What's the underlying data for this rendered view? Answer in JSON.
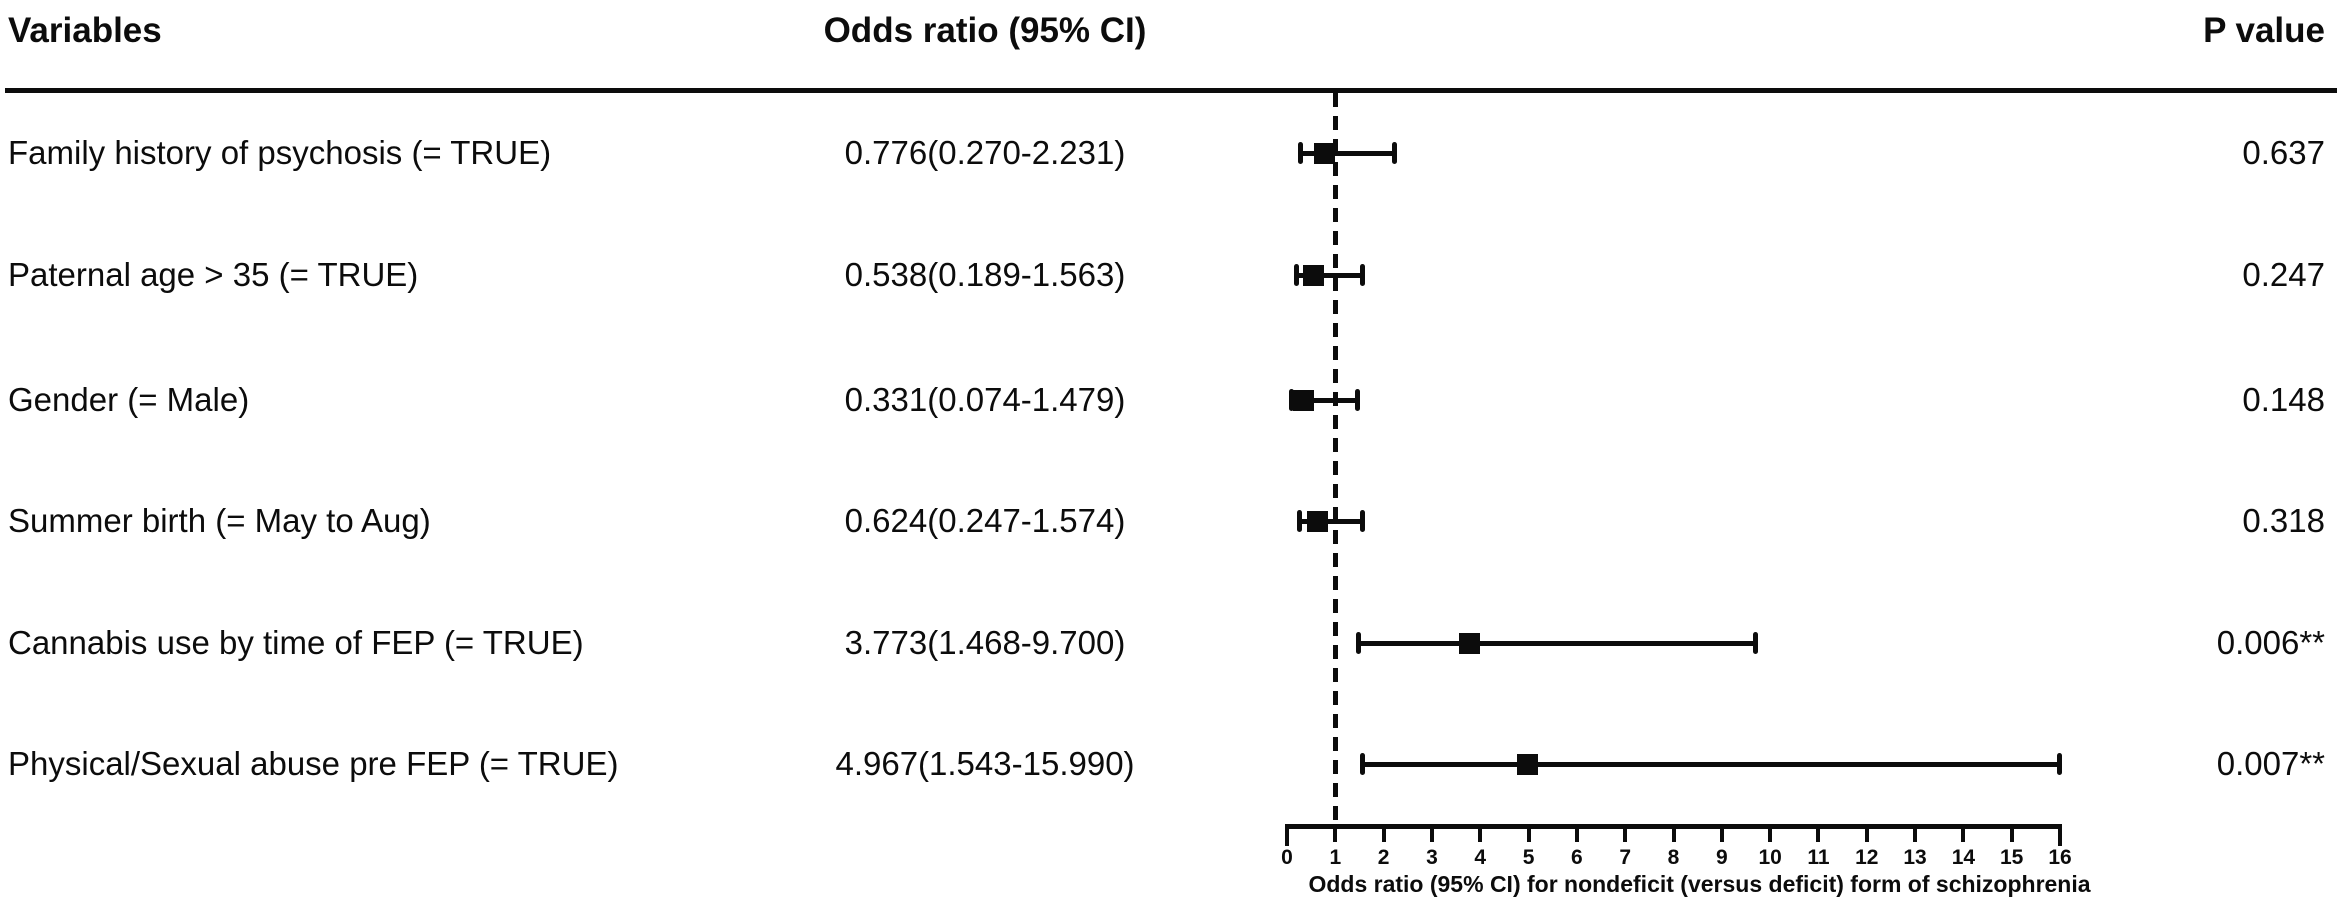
{
  "header": {
    "variables": "Variables",
    "odds_ratio": "Odds ratio (95% CI)",
    "p_value": "P value"
  },
  "chart_data": {
    "type": "forest",
    "x_axis": {
      "label": "Odds ratio (95% CI) for nondeficit (versus deficit) form of schizophrenia",
      "min": 0,
      "max": 16,
      "ticks": [
        0,
        1,
        2,
        3,
        4,
        5,
        6,
        7,
        8,
        9,
        10,
        11,
        12,
        13,
        14,
        15,
        16
      ],
      "reference_line": 1
    },
    "rows": [
      {
        "variable": "Family history of psychosis (= TRUE)",
        "or": 0.776,
        "ci_low": 0.27,
        "ci_high": 2.231,
        "or_label": "0.776(0.270-2.231)",
        "p_label": "0.637"
      },
      {
        "variable": "Paternal age > 35 (= TRUE)",
        "or": 0.538,
        "ci_low": 0.189,
        "ci_high": 1.563,
        "or_label": "0.538(0.189-1.563)",
        "p_label": "0.247"
      },
      {
        "variable": "Gender (= Male)",
        "or": 0.331,
        "ci_low": 0.074,
        "ci_high": 1.479,
        "or_label": "0.331(0.074-1.479)",
        "p_label": "0.148"
      },
      {
        "variable": "Summer birth (= May to Aug)",
        "or": 0.624,
        "ci_low": 0.247,
        "ci_high": 1.574,
        "or_label": "0.624(0.247-1.574)",
        "p_label": "0.318"
      },
      {
        "variable": "Cannabis use by time of FEP (= TRUE)",
        "or": 3.773,
        "ci_low": 1.468,
        "ci_high": 9.7,
        "or_label": "3.773(1.468-9.700)",
        "p_label": "0.006**"
      },
      {
        "variable": "Physical/Sexual abuse pre FEP (= TRUE)",
        "or": 4.967,
        "ci_low": 1.543,
        "ci_high": 15.99,
        "or_label": "4.967(1.543-15.990)",
        "p_label": "0.007**"
      }
    ]
  },
  "colors": {
    "ink": "#0c0c0c",
    "background": "#ffffff"
  }
}
